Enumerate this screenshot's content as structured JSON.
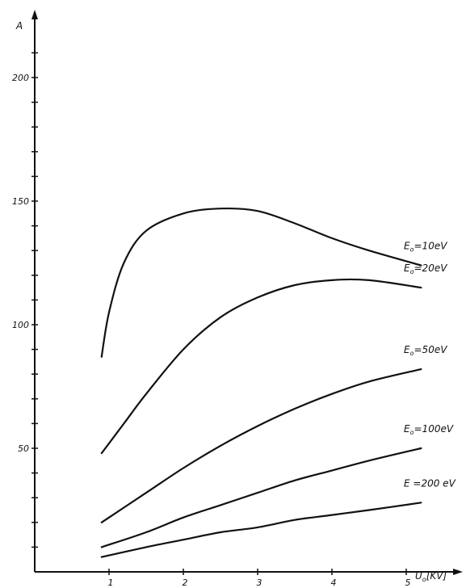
{
  "chart_data": {
    "type": "line",
    "ylabel": "A",
    "xlabel_main": "U",
    "xlabel_sub": "o",
    "xlabel_unit": "[KV]",
    "xlim": [
      0,
      5.3
    ],
    "ylim": [
      0,
      215
    ],
    "x_ticks": [
      1,
      2,
      3,
      4,
      5
    ],
    "y_tick_labels": [
      50,
      100,
      150,
      200
    ],
    "y_minor_step": 10,
    "series": [
      {
        "name": "E_o=10eV",
        "label_main": "E",
        "label_sub": "o",
        "label_rest": "=10eV",
        "x": [
          0.9,
          1.0,
          1.2,
          1.5,
          2.0,
          2.5,
          3.0,
          3.5,
          4.0,
          4.5,
          5.2
        ],
        "y": [
          87,
          105,
          125,
          138,
          145,
          147,
          146,
          141,
          135,
          130,
          124
        ]
      },
      {
        "name": "E_o=20eV",
        "label_main": "E",
        "label_sub": "o",
        "label_rest": "=20eV",
        "x": [
          0.9,
          1.2,
          1.5,
          2.0,
          2.5,
          3.0,
          3.5,
          4.0,
          4.5,
          5.2
        ],
        "y": [
          48,
          60,
          72,
          90,
          103,
          111,
          116,
          118,
          118,
          115
        ]
      },
      {
        "name": "E_o=50eV",
        "label_main": "E",
        "label_sub": "o",
        "label_rest": "=50eV",
        "x": [
          0.9,
          1.5,
          2.0,
          2.5,
          3.0,
          3.5,
          4.0,
          4.5,
          5.2
        ],
        "y": [
          20,
          32,
          42,
          51,
          59,
          66,
          72,
          77,
          82
        ]
      },
      {
        "name": "E_o=100eV",
        "label_main": "E",
        "label_sub": "o",
        "label_rest": "=100eV",
        "x": [
          0.9,
          1.5,
          2.0,
          2.5,
          3.0,
          3.5,
          4.0,
          4.5,
          5.2
        ],
        "y": [
          10,
          16,
          22,
          27,
          32,
          37,
          41,
          45,
          50
        ]
      },
      {
        "name": "E =200 eV",
        "label_main": "E",
        "label_sub": "",
        "label_rest": " =200 eV",
        "x": [
          0.9,
          1.5,
          2.0,
          2.5,
          3.0,
          3.5,
          4.0,
          4.5,
          5.2
        ],
        "y": [
          6,
          10,
          13,
          16,
          18,
          21,
          23,
          25,
          28
        ]
      }
    ]
  }
}
